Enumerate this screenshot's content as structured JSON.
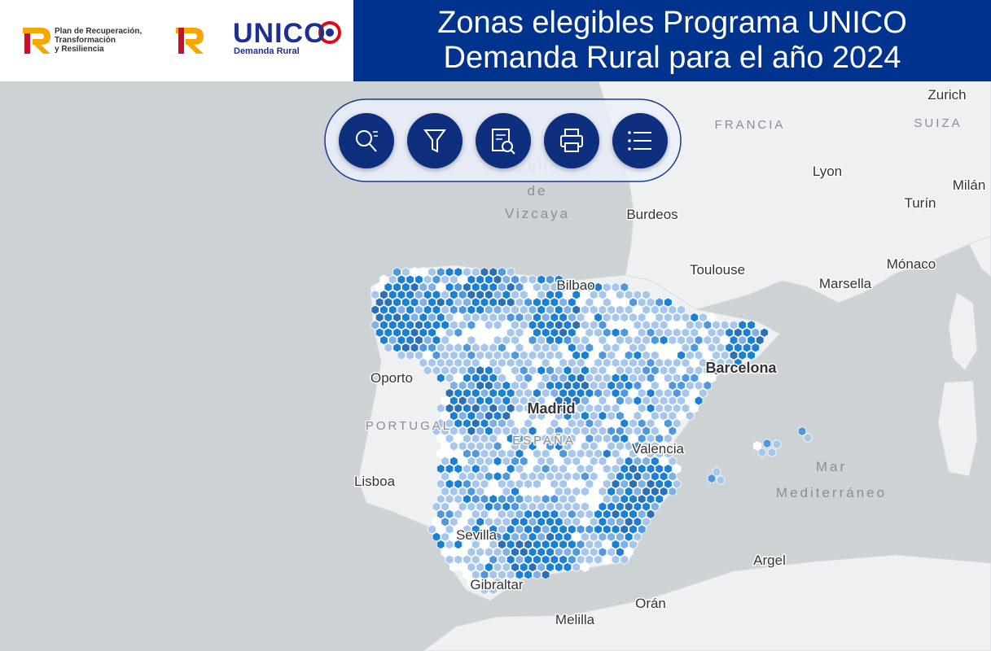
{
  "header": {
    "logo_prtr": [
      "Plan de Recuperación,",
      "Transformación",
      "y Resiliencia"
    ],
    "logo_unico": "UNICO",
    "logo_unico_sub": "Demanda Rural",
    "title": [
      "Zonas elegibles Programa UNICO",
      "Demanda Rural para el año 2024"
    ]
  },
  "map": {
    "labels": [
      "Zurich",
      "FRANCIA",
      "SUIZA",
      "Lyon",
      "Milán",
      "Turín",
      "Golfo",
      "de",
      "Vizcaya",
      "Burdeos",
      "Toulouse",
      "Mónaco",
      "Marsella",
      "Bilbao",
      "Barcelona",
      "Oporto",
      "PORTUGAL",
      "Madrid",
      "ESPAÑA",
      "Valencia",
      "Mar",
      "Mediterráneo",
      "Lisboa",
      "Sevilla",
      "Argel",
      "Gibraltar",
      "Orán",
      "Melilla"
    ]
  }
}
